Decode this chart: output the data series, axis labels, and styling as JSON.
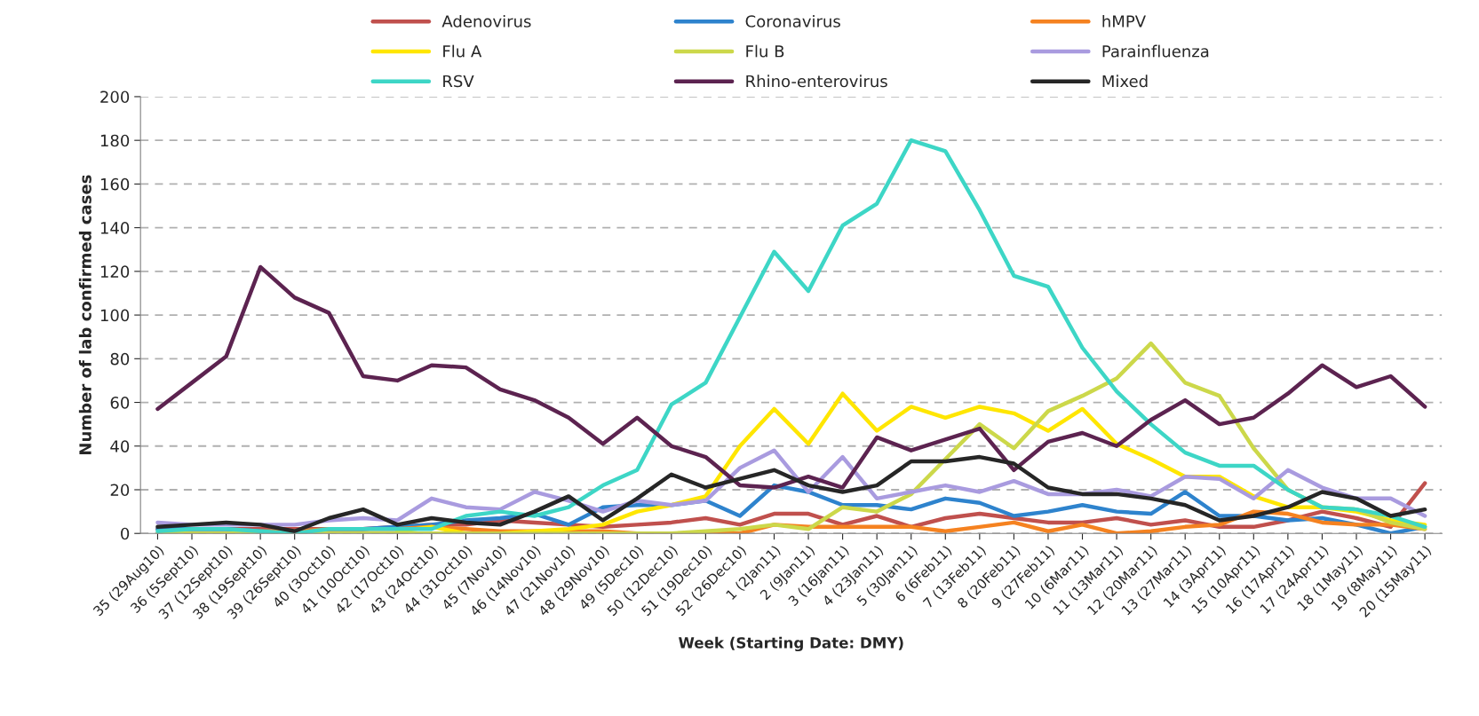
{
  "chart_data": {
    "type": "line",
    "xlabel": "Week (Starting Date: DMY)",
    "ylabel": "Number of lab confirmed cases",
    "categories": [
      "35 (29Aug10)",
      "36 (5Sept10)",
      "37 (12Sept10)",
      "38 (19Sept10)",
      "39 (26Sept10)",
      "40 (3Oct10)",
      "41 (10Oct10)",
      "42 (17Oct10)",
      "43 (24Oct10)",
      "44 (31Oct10)",
      "45 (7Nov10)",
      "46 (14Nov10)",
      "47 (21Nov10)",
      "48 (29Nov10)",
      "49 (5Dec10)",
      "50 (12Dec10)",
      "51 (19Dec10)",
      "52 (26Dec10)",
      "1 (2Jan11)",
      "2 (9Jan11)",
      "3 (16Jan11)",
      "4 (23Jan11)",
      "5 (30Jan11)",
      "6 (6Feb11)",
      "7 (13Feb11)",
      "8 (20Feb11)",
      "9 (27Feb11)",
      "10 (6Mar11)",
      "11 (13Mar11)",
      "12 (20Mar11)",
      "13 (27Mar11)",
      "14 (3Apr11)",
      "15 (10Apr11)",
      "16 (17Apr11)",
      "17 (24Apr11)",
      "18 (1May11)",
      "19 (8May11)",
      "20 (15May11)"
    ],
    "ylim": [
      0,
      200
    ],
    "yticks": [
      0,
      20,
      40,
      60,
      80,
      100,
      120,
      140,
      160,
      180,
      200
    ],
    "grid": "y",
    "legend": "top",
    "line_style": "solid",
    "marker": "none",
    "series": [
      {
        "name": "Adenovirus",
        "color": "#c0504d",
        "values": [
          2,
          2,
          2,
          2,
          2,
          2,
          2,
          3,
          4,
          4,
          6,
          5,
          4,
          3,
          4,
          5,
          7,
          4,
          9,
          9,
          4,
          8,
          3,
          7,
          9,
          7,
          5,
          5,
          7,
          4,
          6,
          3,
          3,
          6,
          10,
          7,
          3,
          23
        ]
      },
      {
        "name": "Coronavirus",
        "color": "#2e83cd",
        "values": [
          2,
          2,
          2,
          1,
          1,
          2,
          2,
          3,
          4,
          6,
          7,
          9,
          4,
          12,
          13,
          13,
          15,
          8,
          22,
          19,
          13,
          13,
          11,
          16,
          14,
          8,
          10,
          13,
          10,
          9,
          19,
          8,
          8,
          6,
          7,
          4,
          0,
          3
        ]
      },
      {
        "name": "hMPV",
        "color": "#f58220",
        "values": [
          null,
          null,
          null,
          1,
          1,
          2,
          2,
          2,
          3,
          2,
          1,
          1,
          1,
          1,
          0,
          0,
          0,
          0,
          4,
          3,
          3,
          3,
          3,
          1,
          3,
          5,
          1,
          4,
          0,
          1,
          3,
          4,
          10,
          9,
          5,
          4,
          4,
          2
        ]
      },
      {
        "name": "Flu A",
        "color": "#ffe600",
        "values": [
          null,
          null,
          null,
          null,
          null,
          null,
          null,
          1,
          3,
          0,
          0,
          1,
          2,
          4,
          10,
          13,
          17,
          40,
          57,
          41,
          64,
          47,
          58,
          53,
          58,
          55,
          47,
          57,
          41,
          34,
          26,
          26,
          17,
          12,
          12,
          10,
          6,
          4
        ]
      },
      {
        "name": "Flu B",
        "color": "#ccd84a",
        "values": [
          0,
          0,
          0,
          0,
          0,
          0,
          0,
          0,
          0,
          0,
          0,
          0,
          0,
          0,
          0,
          0,
          1,
          2,
          4,
          2,
          12,
          10,
          18,
          34,
          50,
          39,
          56,
          63,
          71,
          87,
          69,
          63,
          39,
          20,
          12,
          11,
          5,
          2
        ]
      },
      {
        "name": "Parainfluenza",
        "color": "#a99bdf",
        "values": [
          5,
          4,
          4,
          4,
          4,
          6,
          7,
          6,
          16,
          12,
          11,
          19,
          15,
          10,
          15,
          13,
          15,
          30,
          38,
          19,
          35,
          16,
          19,
          22,
          19,
          24,
          18,
          18,
          20,
          17,
          26,
          25,
          16,
          29,
          21,
          16,
          16,
          8
        ]
      },
      {
        "name": "RSV",
        "color": "#3dd6c6",
        "values": [
          1,
          2,
          2,
          1,
          0,
          2,
          2,
          2,
          2,
          8,
          10,
          8,
          12,
          22,
          29,
          59,
          69,
          99,
          129,
          111,
          141,
          151,
          180,
          175,
          148,
          118,
          113,
          85,
          65,
          50,
          37,
          31,
          31,
          20,
          12,
          11,
          8,
          3
        ]
      },
      {
        "name": "Rhino-enterovirus",
        "color": "#5c2350",
        "values": [
          57,
          69,
          81,
          122,
          108,
          101,
          72,
          70,
          77,
          76,
          66,
          61,
          53,
          41,
          53,
          40,
          35,
          22,
          21,
          26,
          21,
          44,
          38,
          43,
          48,
          29,
          42,
          46,
          40,
          52,
          61,
          50,
          53,
          64,
          77,
          67,
          72,
          58
        ]
      },
      {
        "name": "Mixed",
        "color": "#262626",
        "values": [
          3,
          4,
          5,
          4,
          1,
          7,
          11,
          4,
          7,
          5,
          4,
          10,
          17,
          6,
          16,
          27,
          21,
          25,
          29,
          22,
          19,
          22,
          33,
          33,
          35,
          32,
          21,
          18,
          18,
          16,
          13,
          6,
          8,
          12,
          19,
          16,
          8,
          11
        ]
      }
    ]
  }
}
